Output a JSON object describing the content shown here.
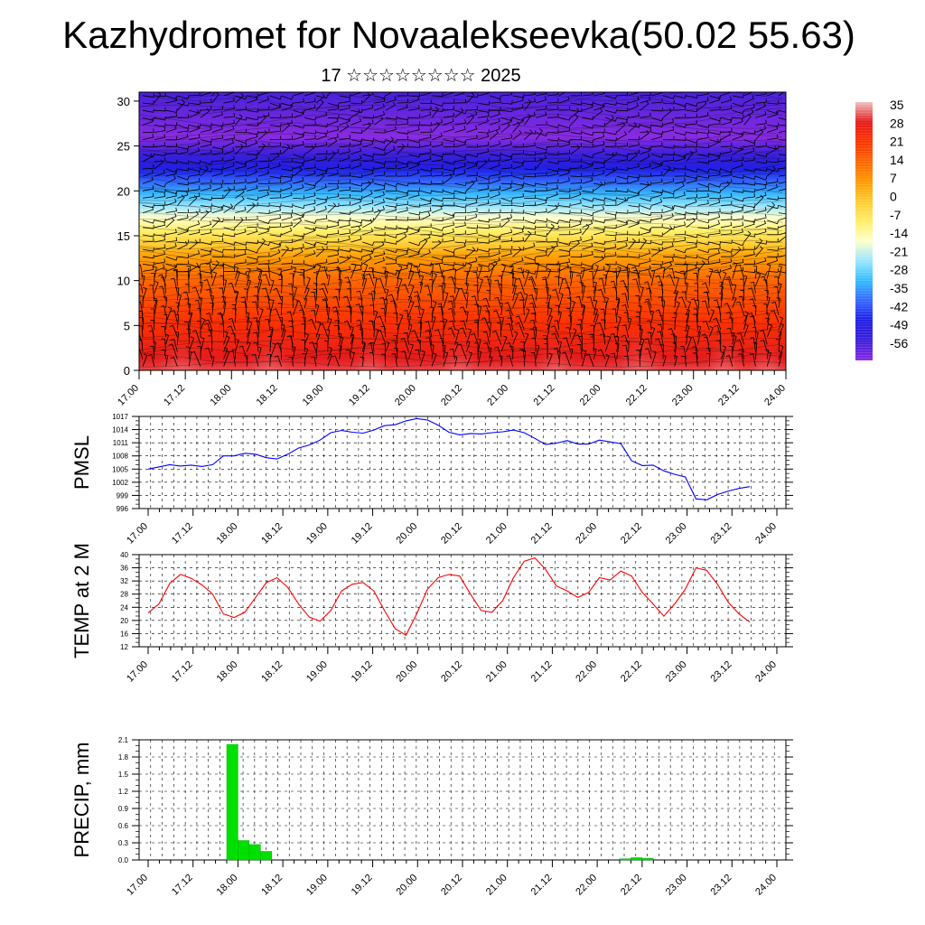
{
  "title": "Kazhydromet for Novaalekseevka(50.02 55.63)",
  "subtitle": "17 ☆☆☆☆☆☆☆☆ 2025",
  "chart_data": [
    {
      "type": "heatmap",
      "description_hint": "vertical cross-section with wind barbs",
      "x_tick_labels": [
        "17.00",
        "17.12",
        "18.00",
        "18.12",
        "19.00",
        "19.12",
        "20.00",
        "20.12",
        "21.00",
        "21.12",
        "22.00",
        "22.12",
        "23.00",
        "23.12",
        "24.00"
      ],
      "y_tick_labels": [
        "0",
        "5",
        "10",
        "15",
        "20",
        "25",
        "30"
      ],
      "ylim": [
        0,
        31
      ],
      "colorbar_labels": [
        "35",
        "28",
        "21",
        "14",
        "7",
        "0",
        "-7",
        "-14",
        "-21",
        "-28",
        "-35",
        "-42",
        "-49",
        "-56"
      ],
      "colorbar_colors": [
        "#f0c0c0",
        "#e41a1c",
        "#ff3300",
        "#ff6600",
        "#ff9900",
        "#ffcc33",
        "#ffee66",
        "#ffffcc",
        "#99e6ff",
        "#33bbff",
        "#3366ff",
        "#1f1fe6",
        "#3b1fd9",
        "#8a2be2"
      ],
      "level_profile": [
        {
          "y": 0,
          "value": 30
        },
        {
          "y": 5,
          "value": 22
        },
        {
          "y": 10,
          "value": 14
        },
        {
          "y": 13,
          "value": 5
        },
        {
          "y": 15,
          "value": -5
        },
        {
          "y": 17,
          "value": -14
        },
        {
          "y": 20,
          "value": -30
        },
        {
          "y": 23,
          "value": -45
        },
        {
          "y": 26,
          "value": -56
        },
        {
          "y": 31,
          "value": -50
        }
      ]
    },
    {
      "type": "line",
      "ylabel": "PMSL",
      "ylim": [
        996,
        1017
      ],
      "y_ticks": [
        "996",
        "999",
        "1002",
        "1005",
        "1008",
        "1011",
        "1014",
        "1017"
      ],
      "x_tick_labels": [
        "17.00",
        "17.12",
        "18.00",
        "18.12",
        "19.00",
        "19.12",
        "20.00",
        "20.12",
        "21.00",
        "21.12",
        "22.00",
        "22.12",
        "23.00",
        "23.12",
        "24.00"
      ],
      "line_color": "#0000ff",
      "x": [
        0,
        1,
        2,
        3,
        4,
        5,
        6,
        7,
        8,
        9,
        10,
        11,
        12,
        13,
        14,
        15,
        16,
        17,
        18,
        19,
        20,
        21,
        22,
        23,
        24,
        25,
        26,
        27,
        28,
        29,
        30,
        31,
        32,
        33,
        34,
        35,
        36,
        37,
        38,
        39,
        40,
        41,
        42,
        43,
        44,
        45,
        46,
        47,
        48,
        49,
        50,
        51,
        52,
        53,
        54,
        55,
        56
      ],
      "values": [
        1005,
        1005.5,
        1006,
        1005.7,
        1005.9,
        1005.6,
        1006,
        1008,
        1008,
        1008.6,
        1008.4,
        1007.6,
        1007.3,
        1008.4,
        1009.8,
        1010.5,
        1011.6,
        1013.3,
        1013.8,
        1013.4,
        1013.2,
        1013.9,
        1014.9,
        1015.1,
        1016,
        1016.5,
        1016.2,
        1015,
        1013.4,
        1012.8,
        1013.1,
        1013,
        1013.3,
        1013.5,
        1013.9,
        1013.3,
        1012,
        1010.6,
        1010.9,
        1011.5,
        1010.7,
        1010.7,
        1011.6,
        1011.2,
        1010.8,
        1006.9,
        1005.8,
        1005.9,
        1004.6,
        1003.8,
        1003.2,
        998.2,
        998,
        999.2,
        1000,
        1000.6,
        1001
      ]
    },
    {
      "type": "line",
      "ylabel": "TEMP at 2 M",
      "ylim": [
        12,
        40
      ],
      "y_ticks": [
        "12",
        "16",
        "20",
        "24",
        "28",
        "32",
        "36",
        "40"
      ],
      "x_tick_labels": [
        "17.00",
        "17.12",
        "18.00",
        "18.12",
        "19.00",
        "19.12",
        "20.00",
        "20.12",
        "21.00",
        "21.12",
        "22.00",
        "22.12",
        "23.00",
        "23.12",
        "24.00"
      ],
      "line_color": "#ff0000",
      "x": [
        0,
        2,
        4,
        6,
        8,
        10,
        12,
        14,
        16,
        18,
        20,
        22,
        24,
        26,
        28,
        30,
        32,
        34,
        36,
        38,
        40,
        42,
        44,
        46,
        48,
        50,
        52,
        54,
        56,
        58,
        60,
        62,
        64,
        66,
        68,
        70,
        72,
        74,
        76,
        78,
        80,
        82,
        84,
        86,
        88,
        90,
        92,
        94,
        96,
        98,
        100,
        102,
        104,
        106,
        108,
        110,
        112
      ],
      "values": [
        22.3,
        25,
        31.2,
        34,
        32.8,
        30.8,
        28,
        22,
        20.9,
        22.5,
        27,
        31.5,
        33,
        30,
        25,
        21,
        19.8,
        23,
        29,
        31,
        31.5,
        29,
        23,
        17.5,
        15.5,
        22,
        29.5,
        33,
        34,
        33.5,
        28,
        23,
        22.5,
        26,
        33,
        38,
        39,
        35.5,
        30.5,
        29,
        27,
        28.5,
        33,
        32.3,
        35,
        33.5,
        28.5,
        25,
        21.3,
        25,
        29.5,
        36,
        35.2,
        31,
        25.5,
        22,
        19.5
      ]
    },
    {
      "type": "bar",
      "ylabel": "PRECIP, mm",
      "ylim": [
        0,
        2.1
      ],
      "y_ticks": [
        "0.0",
        "0.3",
        "0.6",
        "0.9",
        "1.2",
        "1.5",
        "1.8",
        "2.1"
      ],
      "x_tick_labels": [
        "17.00",
        "17.12",
        "18.00",
        "18.12",
        "19.00",
        "19.12",
        "20.00",
        "20.12",
        "21.00",
        "21.12",
        "22.00",
        "22.12",
        "23.00",
        "23.12",
        "24.00"
      ],
      "bar_color": "#00e000",
      "bars": [
        {
          "start_hours": 21,
          "end_hours": 24,
          "value": 2.02
        },
        {
          "start_hours": 24,
          "end_hours": 27,
          "value": 0.34
        },
        {
          "start_hours": 27,
          "end_hours": 30,
          "value": 0.27
        },
        {
          "start_hours": 30,
          "end_hours": 33,
          "value": 0.15
        },
        {
          "start_hours": 126,
          "end_hours": 129,
          "value": 0.02
        },
        {
          "start_hours": 129,
          "end_hours": 132,
          "value": 0.04
        },
        {
          "start_hours": 132,
          "end_hours": 135,
          "value": 0.03
        }
      ]
    }
  ]
}
